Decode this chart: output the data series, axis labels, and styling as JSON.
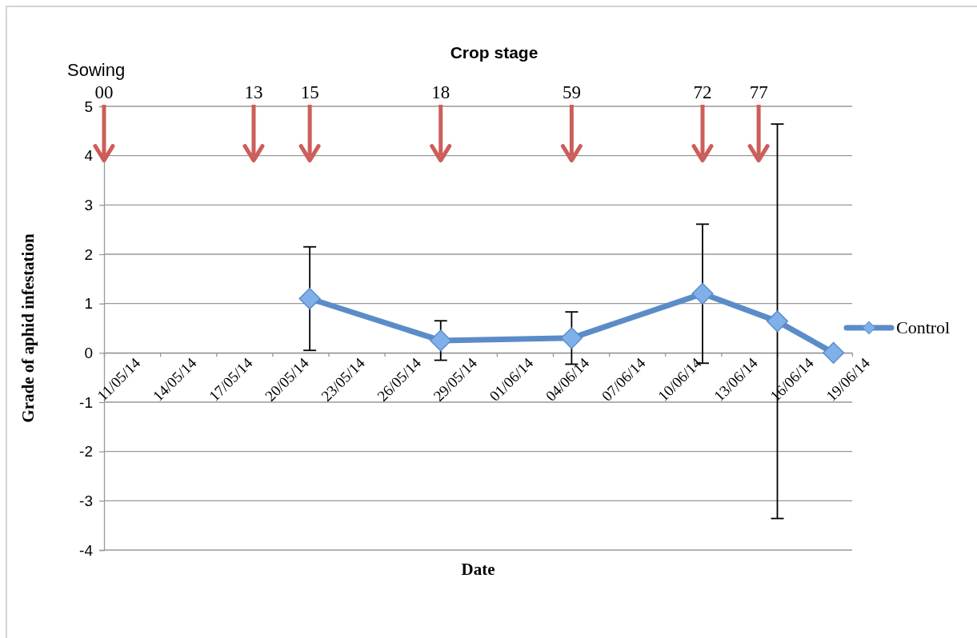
{
  "chart_data": {
    "type": "line",
    "xlabel": "Date",
    "ylabel": "Grade of aphid infestation",
    "x2label": "Crop stage",
    "x": [
      "--05-22",
      "--05-29",
      "--06-05",
      "--06-12",
      "--06-16",
      "--06-19"
    ],
    "series": [
      {
        "name": "Control",
        "color": "#5b8cc8",
        "values": [
          1.1,
          0.25,
          0.3,
          1.2,
          0.64,
          0
        ],
        "errors": [
          1.05,
          0.4,
          0.53,
          1.41,
          4.0,
          null
        ]
      }
    ],
    "xlim": [
      "--05-11",
      "--06-20"
    ],
    "xticks": [
      {
        "value": "--05-11",
        "label": "11/05/14"
      },
      {
        "value": "--05-14",
        "label": "14/05/14"
      },
      {
        "value": "--05-17",
        "label": "17/05/14"
      },
      {
        "value": "--05-20",
        "label": "20/05/14"
      },
      {
        "value": "--05-23",
        "label": "23/05/14"
      },
      {
        "value": "--05-26",
        "label": "26/05/14"
      },
      {
        "value": "--05-29",
        "label": "29/05/14"
      },
      {
        "value": "--06-01",
        "label": "01/06/14"
      },
      {
        "value": "--06-04",
        "label": "04/06/14"
      },
      {
        "value": "--06-07",
        "label": "07/06/14"
      },
      {
        "value": "--06-10",
        "label": "10/06/14"
      },
      {
        "value": "--06-13",
        "label": "13/06/14"
      },
      {
        "value": "--06-16",
        "label": "16/06/14"
      },
      {
        "value": "--06-19",
        "label": "19/06/14"
      }
    ],
    "x2lim": [
      "--05-11",
      "--06-20"
    ],
    "x2ticks": [
      {
        "value": "--05-11",
        "label": "00"
      },
      {
        "value": "--05-19",
        "label": "13"
      },
      {
        "value": "--05-22",
        "label": "15"
      },
      {
        "value": "--05-29",
        "label": "18"
      },
      {
        "value": "--06-05",
        "label": "59"
      },
      {
        "value": "--06-12",
        "label": "72"
      },
      {
        "value": "--06-15",
        "label": "77"
      }
    ],
    "ylim": [
      -4,
      5
    ],
    "yticks": [
      -4,
      -3,
      -2,
      -1,
      0,
      1,
      2,
      3,
      4,
      5
    ],
    "grid": "y",
    "legend": "right",
    "marker": "diamond",
    "line_style": "solid",
    "annotations": [
      "Sowing"
    ]
  }
}
